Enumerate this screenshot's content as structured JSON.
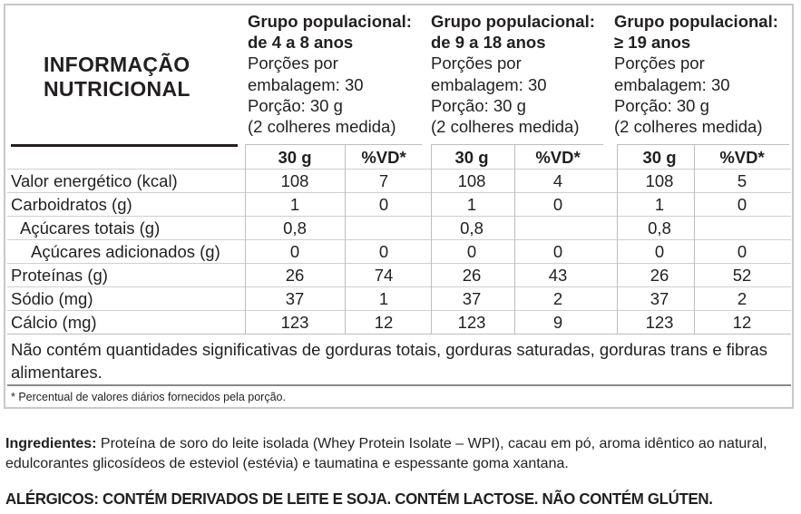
{
  "title": {
    "line1": "INFORMAÇÃO",
    "line2": "NUTRICIONAL"
  },
  "groups": [
    {
      "heading": "Grupo populacional:",
      "age": "de 4 a 8 anos",
      "portions_line1": "Porções por",
      "portions_line2": "embalagem: 30",
      "portion": "Porção: 30 g",
      "measure": "(2 colheres medida)",
      "col_amount": "30 g",
      "col_vd": "%VD*"
    },
    {
      "heading": "Grupo populacional:",
      "age": "de 9 a 18 anos",
      "portions_line1": "Porções por",
      "portions_line2": "embalagem: 30",
      "portion": "Porção: 30 g",
      "measure": "(2 colheres medida)",
      "col_amount": "30 g",
      "col_vd": "%VD*"
    },
    {
      "heading": "Grupo populacional:",
      "age": "≥ 19 anos",
      "portions_line1": "Porções por",
      "portions_line2": "embalagem: 30",
      "portion": "Porção: 30 g",
      "measure": "(2 colheres medida)",
      "col_amount": "30 g",
      "col_vd": "%VD*"
    }
  ],
  "rows": [
    {
      "label": "Valor energético (kcal)",
      "indent": 0,
      "values": [
        "108",
        "7",
        "108",
        "4",
        "108",
        "5"
      ]
    },
    {
      "label": "Carboidratos (g)",
      "indent": 0,
      "values": [
        "1",
        "0",
        "1",
        "0",
        "1",
        "0"
      ]
    },
    {
      "label": "Açúcares totais (g)",
      "indent": 1,
      "values": [
        "0,8",
        "",
        "0,8",
        "",
        "0,8",
        ""
      ]
    },
    {
      "label": "Açúcares adicionados (g)",
      "indent": 2,
      "values": [
        "0",
        "0",
        "0",
        "0",
        "0",
        "0"
      ]
    },
    {
      "label": "Proteínas (g)",
      "indent": 0,
      "values": [
        "26",
        "74",
        "26",
        "43",
        "26",
        "52"
      ]
    },
    {
      "label": "Sódio (mg)",
      "indent": 0,
      "values": [
        "37",
        "1",
        "37",
        "2",
        "37",
        "2"
      ]
    },
    {
      "label": "Cálcio (mg)",
      "indent": 0,
      "values": [
        "123",
        "12",
        "123",
        "9",
        "123",
        "12"
      ]
    }
  ],
  "note": "Não contém quantidades significativas de gorduras totais, gorduras saturadas, gorduras trans e fibras alimentares.",
  "footnote": "* Percentual de valores diários fornecidos pela porção.",
  "ingredients": {
    "label": "Ingredientes:",
    "text": " Proteína de soro do leite isolada (Whey Protein Isolate – WPI), cacau em pó, aroma idêntico ao natural, edulcorantes glicosídeos de esteviol (estévia) e taumatina e espessante goma xantana."
  },
  "allergens": "ALÉRGICOS: CONTÉM DERIVADOS DE LEITE E SOJA. CONTÉM LACTOSE. NÃO CONTÉM GLÚTEN.",
  "colors": {
    "text": "#231f20",
    "border": "#c8c8c8",
    "grid": "#cfcfcf"
  }
}
